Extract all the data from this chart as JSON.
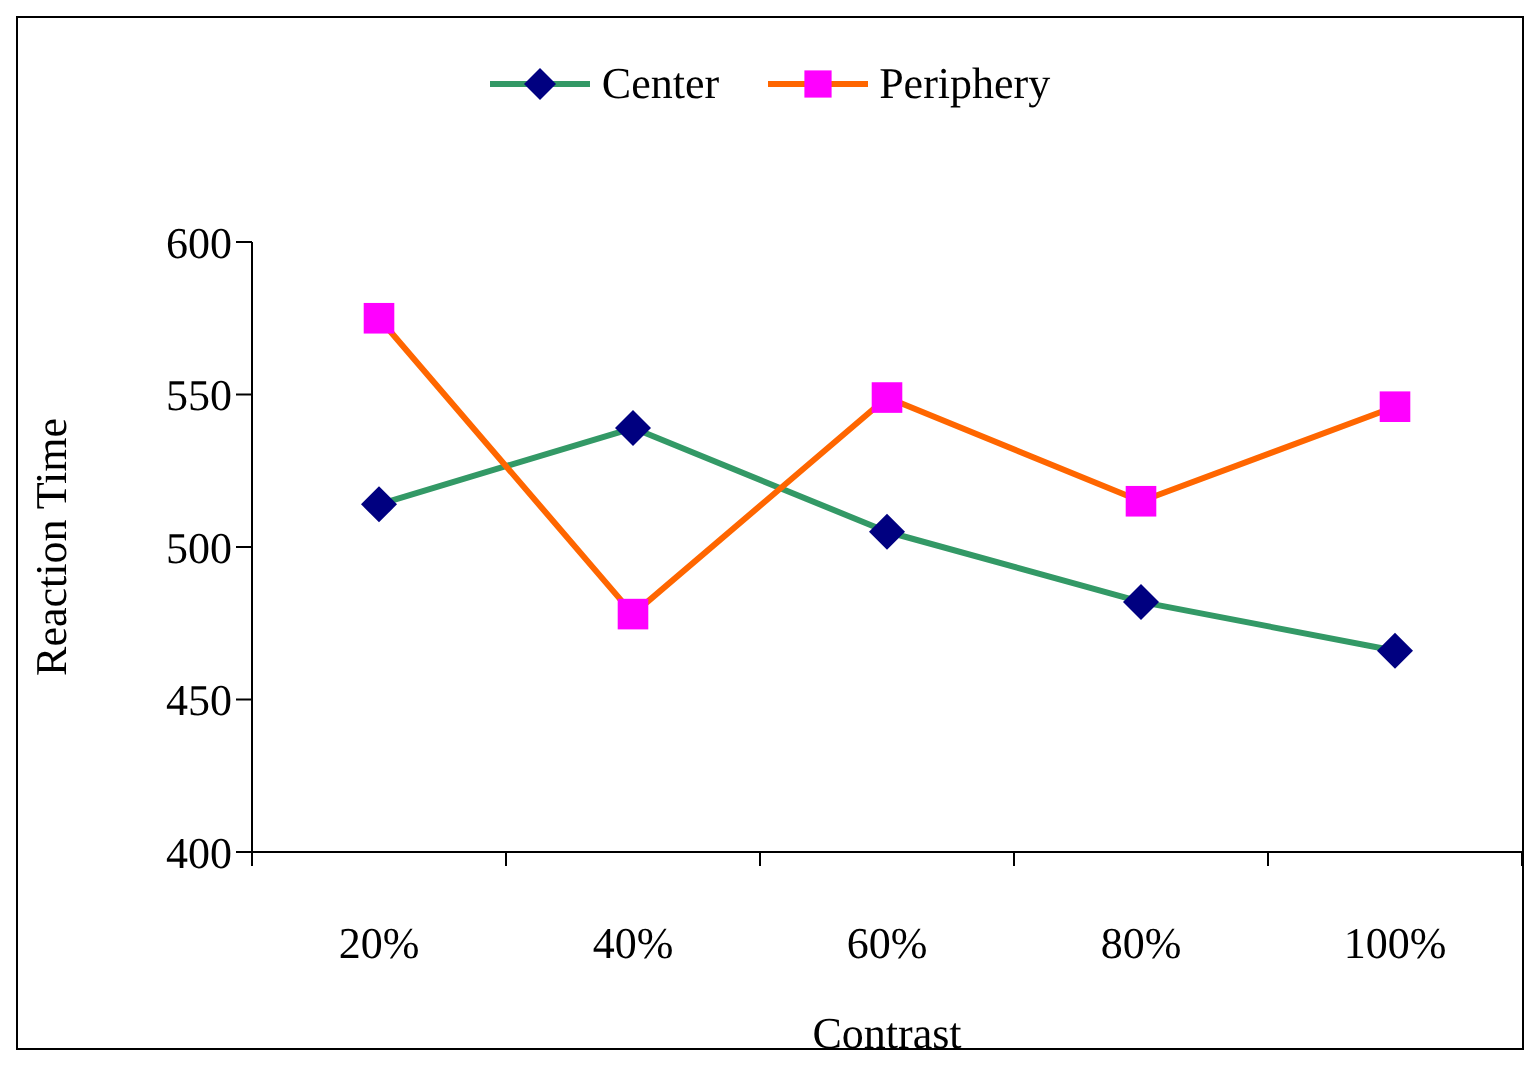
{
  "chart_data": {
    "type": "line",
    "categories": [
      "20%",
      "40%",
      "60%",
      "80%",
      "100%"
    ],
    "xlabel": "Contrast",
    "ylabel": "Reaction Time",
    "ylim": [
      400,
      600
    ],
    "yticks": [
      400,
      450,
      500,
      550,
      600
    ],
    "grid": false,
    "legend": "top",
    "series": [
      {
        "name": "Center",
        "color": "#339966",
        "colors": [
          "#000080",
          "#000080",
          "#000080",
          "#000080",
          "#000080"
        ],
        "marker": "diamond",
        "values": [
          514,
          539,
          505,
          482,
          466
        ]
      },
      {
        "name": "Periphery",
        "color": "#ff6600",
        "colors": [
          "#ff00ff",
          "#ff00ff",
          "#ff00ff",
          "#ff00ff",
          "#ff00ff"
        ],
        "marker": "square",
        "values": [
          575,
          478,
          549,
          515,
          546
        ]
      }
    ]
  }
}
